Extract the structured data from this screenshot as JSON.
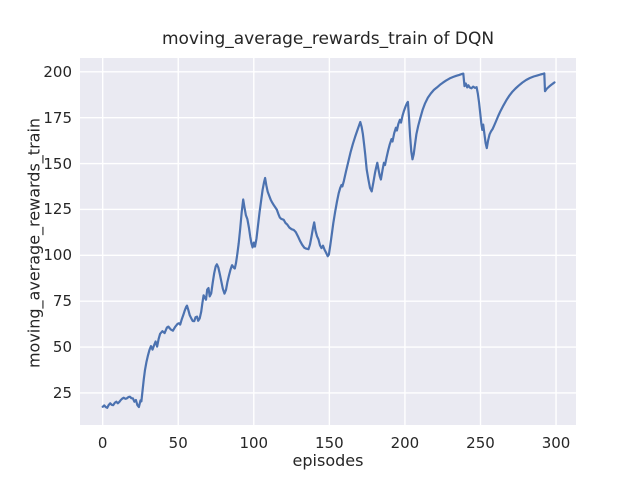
{
  "title": "moving_average_rewards_train of DQN",
  "xlabel": "episodes",
  "ylabel": "moving_average_rewards_train",
  "colors": {
    "figure_bg": "#ffffff",
    "axes_bg": "#eaeaf2",
    "grid": "#ffffff",
    "line": "#4c72b0",
    "text": "#262626"
  },
  "chart_data": {
    "type": "line",
    "title": "moving_average_rewards_train of DQN",
    "xlabel": "episodes",
    "ylabel": "moving_average_rewards_train",
    "x_ticks": [
      0,
      50,
      100,
      150,
      200,
      250,
      300
    ],
    "y_ticks": [
      25,
      50,
      75,
      100,
      125,
      150,
      175,
      200
    ],
    "xlim": [
      -15,
      313.2
    ],
    "ylim": [
      7.5,
      207.5
    ],
    "grid": true,
    "legend": false,
    "series": [
      {
        "name": "moving_average_rewards_train",
        "color": "#4c72b0",
        "points": [
          [
            0,
            17.4
          ],
          [
            1,
            18.2
          ],
          [
            2,
            17.3
          ],
          [
            3,
            16.9
          ],
          [
            4,
            18.4
          ],
          [
            5,
            19.3
          ],
          [
            6,
            18.5
          ],
          [
            7,
            18.3
          ],
          [
            8,
            19.6
          ],
          [
            9,
            20.2
          ],
          [
            10,
            19.3
          ],
          [
            11,
            20.1
          ],
          [
            12,
            21.1
          ],
          [
            13,
            21.9
          ],
          [
            14,
            22.4
          ],
          [
            15,
            21.8
          ],
          [
            16,
            22.0
          ],
          [
            17,
            22.7
          ],
          [
            18,
            22.9
          ],
          [
            19,
            22.1
          ],
          [
            20,
            22.0
          ],
          [
            21,
            20.2
          ],
          [
            22,
            21.1
          ],
          [
            23,
            18.3
          ],
          [
            24,
            17.3
          ],
          [
            25,
            20.9
          ],
          [
            25.6,
            20.4
          ],
          [
            26.4,
            26.5
          ],
          [
            27.2,
            32.5
          ],
          [
            28,
            37.5
          ],
          [
            29,
            42.0
          ],
          [
            30,
            45.5
          ],
          [
            31,
            48.5
          ],
          [
            32,
            50.5
          ],
          [
            33,
            48.6
          ],
          [
            34,
            51.0
          ],
          [
            35,
            53.0
          ],
          [
            36,
            50.2
          ],
          [
            37,
            54.3
          ],
          [
            38,
            57.2
          ],
          [
            39.5,
            58.6
          ],
          [
            41,
            57.6
          ],
          [
            42.5,
            60.6
          ],
          [
            43.5,
            61.1
          ],
          [
            45,
            59.6
          ],
          [
            46.5,
            58.9
          ],
          [
            48,
            61.0
          ],
          [
            49.5,
            62.6
          ],
          [
            50.5,
            63.0
          ],
          [
            51.3,
            62.2
          ],
          [
            52.3,
            65.0
          ],
          [
            53.3,
            67.3
          ],
          [
            54.3,
            69.8
          ],
          [
            55.3,
            71.9
          ],
          [
            55.8,
            72.5
          ],
          [
            56.6,
            70.4
          ],
          [
            57.6,
            67.4
          ],
          [
            58.6,
            65.7
          ],
          [
            59.6,
            64.2
          ],
          [
            60.6,
            64.1
          ],
          [
            61.4,
            66.2
          ],
          [
            62.4,
            66.6
          ],
          [
            63.2,
            64.3
          ],
          [
            64.2,
            65.6
          ],
          [
            65.2,
            69.2
          ],
          [
            66,
            74.0
          ],
          [
            66.8,
            78.2
          ],
          [
            67.6,
            77.0
          ],
          [
            68.4,
            75.8
          ],
          [
            69.2,
            81.3
          ],
          [
            70,
            82.1
          ],
          [
            70.8,
            77.6
          ],
          [
            71.8,
            79.2
          ],
          [
            72.8,
            85.0
          ],
          [
            73.8,
            90.2
          ],
          [
            74.8,
            94.0
          ],
          [
            75.6,
            95.1
          ],
          [
            76.5,
            93.4
          ],
          [
            77.5,
            89.8
          ],
          [
            78.5,
            85.8
          ],
          [
            79.5,
            81.8
          ],
          [
            80.6,
            79.1
          ],
          [
            81.6,
            81.2
          ],
          [
            82.6,
            85.6
          ],
          [
            83.6,
            89.0
          ],
          [
            84.6,
            92.2
          ],
          [
            85.6,
            94.6
          ],
          [
            86.8,
            93.2
          ],
          [
            87.4,
            92.8
          ],
          [
            88.2,
            95.8
          ],
          [
            89,
            100.2
          ],
          [
            90,
            106.5
          ],
          [
            91,
            114.5
          ],
          [
            92,
            123.5
          ],
          [
            93,
            130.4
          ],
          [
            93.8,
            126.3
          ],
          [
            94.8,
            121.8
          ],
          [
            95.8,
            119.6
          ],
          [
            96.8,
            114.8
          ],
          [
            97.6,
            110.3
          ],
          [
            98.4,
            106.6
          ],
          [
            99.2,
            104.3
          ],
          [
            100,
            106.9
          ],
          [
            100.8,
            104.7
          ],
          [
            101.8,
            109.2
          ],
          [
            102.8,
            116.2
          ],
          [
            103.8,
            123.2
          ],
          [
            104.8,
            129.6
          ],
          [
            105.8,
            135.7
          ],
          [
            106.8,
            139.9
          ],
          [
            107.5,
            142.1
          ],
          [
            108.3,
            138.2
          ],
          [
            109.2,
            134.6
          ],
          [
            110.2,
            132.4
          ],
          [
            111.2,
            130.3
          ],
          [
            112.2,
            128.7
          ],
          [
            113.2,
            127.4
          ],
          [
            114.2,
            126.1
          ],
          [
            115.2,
            124.9
          ],
          [
            116.2,
            122.6
          ],
          [
            117.2,
            120.6
          ],
          [
            118.2,
            119.8
          ],
          [
            119.8,
            119.3
          ],
          [
            121,
            117.6
          ],
          [
            122.2,
            116.7
          ],
          [
            123.6,
            115.0
          ],
          [
            125,
            114.2
          ],
          [
            126.4,
            113.8
          ],
          [
            127.8,
            112.6
          ],
          [
            129.2,
            110.4
          ],
          [
            130.6,
            107.9
          ],
          [
            132,
            105.7
          ],
          [
            133.4,
            104.1
          ],
          [
            134.8,
            103.6
          ],
          [
            136.2,
            103.3
          ],
          [
            137.2,
            105.9
          ],
          [
            138.2,
            110.2
          ],
          [
            139.2,
            114.9
          ],
          [
            140,
            117.9
          ],
          [
            140.8,
            113.4
          ],
          [
            141.8,
            110.4
          ],
          [
            142.8,
            108.6
          ],
          [
            143.8,
            105.4
          ],
          [
            144.8,
            103.9
          ],
          [
            145.8,
            105.2
          ],
          [
            146.8,
            103.1
          ],
          [
            147.8,
            101.5
          ],
          [
            148.9,
            99.5
          ],
          [
            149.7,
            100.4
          ],
          [
            150.6,
            105.5
          ],
          [
            151.6,
            111.5
          ],
          [
            152.6,
            117.5
          ],
          [
            153.8,
            123.5
          ],
          [
            155,
            129.0
          ],
          [
            156.2,
            133.8
          ],
          [
            157.2,
            136.7
          ],
          [
            158,
            138.3
          ],
          [
            158.6,
            137.5
          ],
          [
            159.6,
            140.6
          ],
          [
            161,
            145.7
          ],
          [
            162.5,
            151.0
          ],
          [
            164,
            156.0
          ],
          [
            165.5,
            160.5
          ],
          [
            167,
            164.5
          ],
          [
            168.5,
            168.0
          ],
          [
            169.7,
            170.8
          ],
          [
            170.5,
            172.6
          ],
          [
            171.4,
            169.8
          ],
          [
            172.2,
            166.0
          ],
          [
            173,
            160.4
          ],
          [
            173.7,
            155.0
          ],
          [
            174.7,
            146.7
          ],
          [
            175.8,
            141.3
          ],
          [
            176.9,
            136.7
          ],
          [
            178,
            134.8
          ],
          [
            179.1,
            139.5
          ],
          [
            180.2,
            144.9
          ],
          [
            180.9,
            147.7
          ],
          [
            181.7,
            150.4
          ],
          [
            182.5,
            146.7
          ],
          [
            183.4,
            143.1
          ],
          [
            184.1,
            141.3
          ],
          [
            185.2,
            146.7
          ],
          [
            186.1,
            150.4
          ],
          [
            186.8,
            149.2
          ],
          [
            187.8,
            153.1
          ],
          [
            188.9,
            157.0
          ],
          [
            190,
            160.5
          ],
          [
            191.1,
            163.3
          ],
          [
            191.8,
            162.0
          ],
          [
            192.9,
            166.5
          ],
          [
            194,
            169.5
          ],
          [
            194.7,
            168.0
          ],
          [
            195.6,
            171.5
          ],
          [
            196.7,
            173.8
          ],
          [
            197.4,
            172.3
          ],
          [
            198.4,
            176.0
          ],
          [
            199.4,
            178.8
          ],
          [
            200.4,
            181.0
          ],
          [
            201.3,
            182.8
          ],
          [
            202,
            183.6
          ],
          [
            202.6,
            176.0
          ],
          [
            203.4,
            165.0
          ],
          [
            204.2,
            156.5
          ],
          [
            205,
            152.3
          ],
          [
            205.8,
            155.0
          ],
          [
            206.6,
            160.0
          ],
          [
            207.6,
            166.0
          ],
          [
            208.8,
            170.5
          ],
          [
            210.2,
            174.8
          ],
          [
            211.7,
            179.2
          ],
          [
            213.2,
            182.6
          ],
          [
            215.2,
            185.9
          ],
          [
            217.2,
            188.2
          ],
          [
            219.2,
            190.1
          ],
          [
            221.2,
            191.5
          ],
          [
            223.2,
            192.9
          ],
          [
            225.2,
            194.1
          ],
          [
            227.2,
            195.2
          ],
          [
            229.6,
            196.4
          ],
          [
            232,
            197.2
          ],
          [
            234,
            197.8
          ],
          [
            236,
            198.3
          ],
          [
            237.5,
            198.7
          ],
          [
            238.6,
            199.0
          ],
          [
            239.4,
            192.2
          ],
          [
            240.3,
            193.6
          ],
          [
            241.2,
            191.5
          ],
          [
            242,
            192.6
          ],
          [
            242.9,
            191.4
          ],
          [
            244,
            191.0
          ],
          [
            245.2,
            191.9
          ],
          [
            246.4,
            191.2
          ],
          [
            247.4,
            191.6
          ],
          [
            248.2,
            188.2
          ],
          [
            249,
            183.5
          ],
          [
            249.8,
            177.5
          ],
          [
            250.6,
            171.5
          ],
          [
            251.2,
            168.3
          ],
          [
            251.8,
            171.2
          ],
          [
            252.6,
            166.2
          ],
          [
            253.4,
            161.2
          ],
          [
            254.2,
            158.4
          ],
          [
            255,
            162.3
          ],
          [
            256,
            165.9
          ],
          [
            257,
            167.6
          ],
          [
            258,
            168.8
          ],
          [
            259,
            170.6
          ],
          [
            260.2,
            172.9
          ],
          [
            261.7,
            175.9
          ],
          [
            263.2,
            178.5
          ],
          [
            265.2,
            181.7
          ],
          [
            267.2,
            184.6
          ],
          [
            269.2,
            187.1
          ],
          [
            271.2,
            189.2
          ],
          [
            273.2,
            190.9
          ],
          [
            275.2,
            192.4
          ],
          [
            277.7,
            194.1
          ],
          [
            280.2,
            195.5
          ],
          [
            282.7,
            196.6
          ],
          [
            285.2,
            197.4
          ],
          [
            287.7,
            198.0
          ],
          [
            289.7,
            198.5
          ],
          [
            291.5,
            198.9
          ],
          [
            292.2,
            199.1
          ],
          [
            292.7,
            189.4
          ],
          [
            294,
            190.9
          ],
          [
            295.5,
            192.0
          ],
          [
            297,
            193.0
          ],
          [
            298.2,
            193.7
          ],
          [
            299,
            194.2
          ]
        ]
      }
    ]
  }
}
